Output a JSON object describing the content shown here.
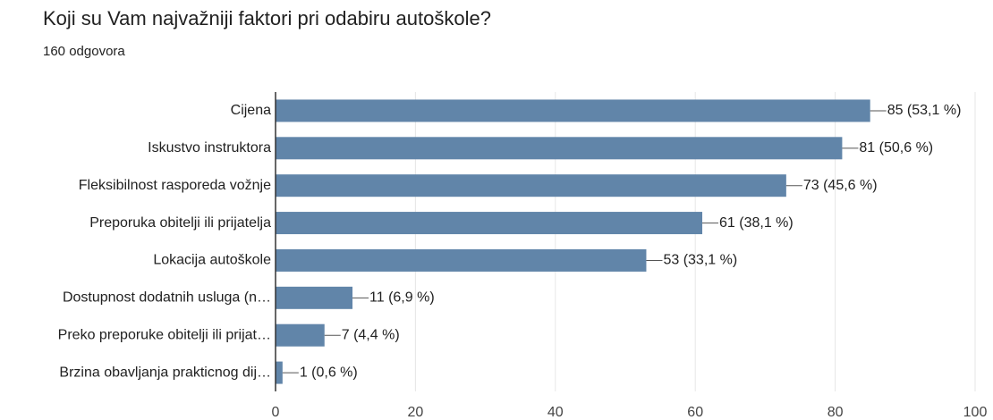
{
  "chart_data": {
    "type": "bar",
    "orientation": "horizontal",
    "title": "Koji su Vam najvažniji faktori pri odabiru autoškole?",
    "subtitle": "160 odgovora",
    "categories": [
      "Cijena",
      "Iskustvo instruktora",
      "Fleksibilnost rasporeda vožnje",
      "Preporuka obitelji ili prijatelja",
      "Lokacija autoškole",
      "Dostupnost dodatnih usluga (n…",
      "Preko preporuke obitelji ili prijat…",
      "Brzina obavljanja prakticnog dij…"
    ],
    "values": [
      85,
      81,
      73,
      61,
      53,
      11,
      7,
      1
    ],
    "value_labels": [
      "85 (53,1 %)",
      "81 (50,6 %)",
      "73 (45,6 %)",
      "61 (38,1 %)",
      "53 (33,1 %)",
      "11 (6,9 %)",
      "7 (4,4 %)",
      "1 (0,6 %)"
    ],
    "color": "#6185a9",
    "xlim": [
      0,
      100
    ],
    "xticks": [
      0,
      20,
      40,
      60,
      80,
      100
    ],
    "grid": true
  }
}
